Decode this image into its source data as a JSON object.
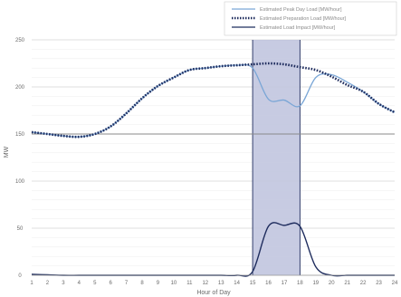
{
  "chart_data": {
    "type": "line",
    "xlabel": "Hour of Day",
    "ylabel": "MW",
    "xlim": [
      1,
      24
    ],
    "ylim": [
      0,
      250
    ],
    "x_ticks": [
      "1",
      "2",
      "3",
      "4",
      "5",
      "6",
      "7",
      "8",
      "9",
      "10",
      "11",
      "12",
      "13",
      "14",
      "15",
      "16",
      "17",
      "18",
      "19",
      "20",
      "21",
      "22",
      "23",
      "24"
    ],
    "y_ticks": [
      {
        "value": 0,
        "label": "0"
      },
      {
        "value": 50,
        "label": "50"
      },
      {
        "value": 100,
        "label": "100"
      },
      {
        "value": 150,
        "label": "150"
      },
      {
        "value": 200,
        "label": "200"
      },
      {
        "value": 250,
        "label": "250"
      }
    ],
    "reference_line": 150,
    "highlight_window": [
      15,
      18
    ],
    "grid": "horizontal",
    "legend_position": "top-right",
    "series": [
      {
        "name": "Estimated Peak Day Load [MW/hour]",
        "style": "solid",
        "color": "#7aa6d6",
        "values": [
          152,
          150,
          148,
          147,
          150,
          158,
          172,
          188,
          201,
          210,
          218,
          220,
          222,
          223,
          220,
          187,
          186,
          180,
          210,
          213,
          205,
          195,
          182,
          173
        ]
      },
      {
        "name": "Estimated Preparation Load [MW/hour]",
        "style": "dotted",
        "color": "#1f2d5e",
        "values": [
          152,
          150,
          148,
          147,
          150,
          158,
          172,
          188,
          201,
          210,
          218,
          220,
          222,
          223,
          224,
          225,
          224,
          221,
          218,
          211,
          202,
          195,
          182,
          173
        ]
      },
      {
        "name": "Estimated Load Impact [MW/hour]",
        "style": "solid",
        "color": "#1f2d5e",
        "values": [
          1,
          0.5,
          0,
          0,
          0,
          0,
          0,
          0,
          0,
          0,
          0,
          0,
          0,
          0,
          4,
          52,
          53,
          52,
          9,
          0,
          0,
          0,
          0,
          0
        ]
      }
    ]
  }
}
